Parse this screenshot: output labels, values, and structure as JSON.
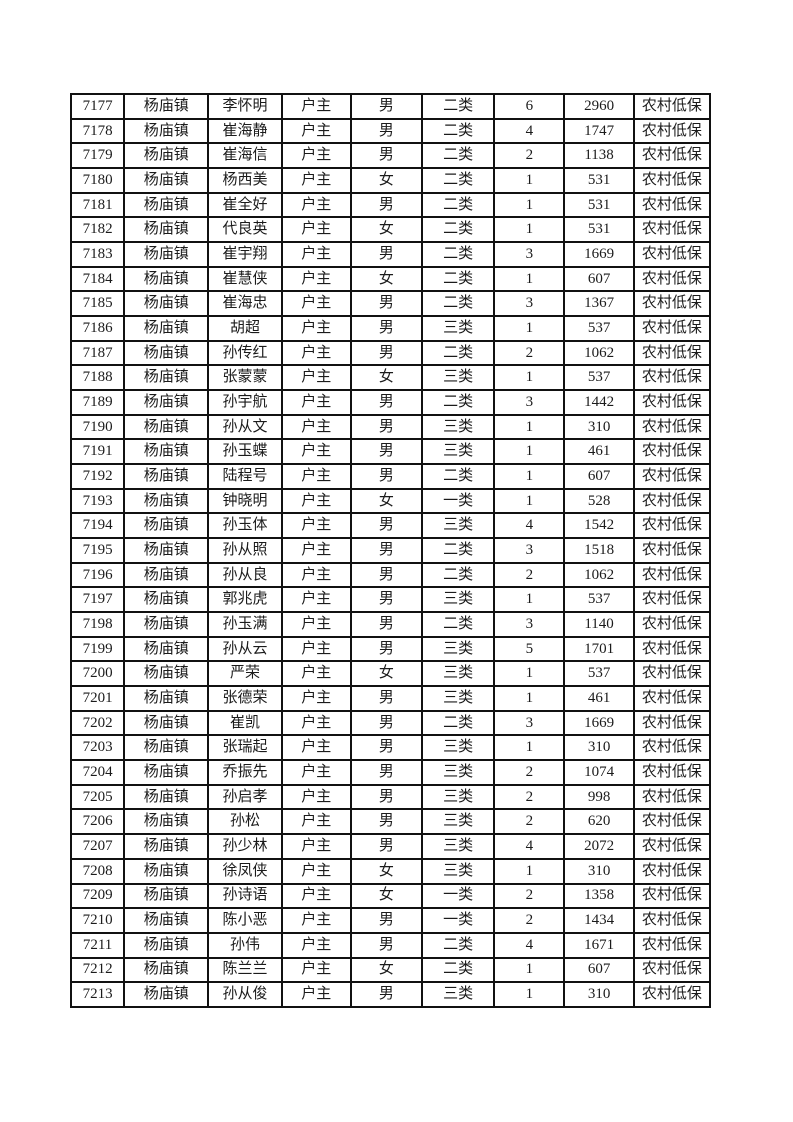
{
  "document": {
    "kind": "welfare-roster-table-page",
    "rows": [
      [
        "7177",
        "杨庙镇",
        "李怀明",
        "户主",
        "男",
        "二类",
        "6",
        "2960",
        "农村低保"
      ],
      [
        "7178",
        "杨庙镇",
        "崔海静",
        "户主",
        "男",
        "二类",
        "4",
        "1747",
        "农村低保"
      ],
      [
        "7179",
        "杨庙镇",
        "崔海信",
        "户主",
        "男",
        "二类",
        "2",
        "1138",
        "农村低保"
      ],
      [
        "7180",
        "杨庙镇",
        "杨西美",
        "户主",
        "女",
        "二类",
        "1",
        "531",
        "农村低保"
      ],
      [
        "7181",
        "杨庙镇",
        "崔全好",
        "户主",
        "男",
        "二类",
        "1",
        "531",
        "农村低保"
      ],
      [
        "7182",
        "杨庙镇",
        "代良英",
        "户主",
        "女",
        "二类",
        "1",
        "531",
        "农村低保"
      ],
      [
        "7183",
        "杨庙镇",
        "崔宇翔",
        "户主",
        "男",
        "二类",
        "3",
        "1669",
        "农村低保"
      ],
      [
        "7184",
        "杨庙镇",
        "崔慧侠",
        "户主",
        "女",
        "二类",
        "1",
        "607",
        "农村低保"
      ],
      [
        "7185",
        "杨庙镇",
        "崔海忠",
        "户主",
        "男",
        "二类",
        "3",
        "1367",
        "农村低保"
      ],
      [
        "7186",
        "杨庙镇",
        "胡超",
        "户主",
        "男",
        "三类",
        "1",
        "537",
        "农村低保"
      ],
      [
        "7187",
        "杨庙镇",
        "孙传红",
        "户主",
        "男",
        "二类",
        "2",
        "1062",
        "农村低保"
      ],
      [
        "7188",
        "杨庙镇",
        "张蒙蒙",
        "户主",
        "女",
        "三类",
        "1",
        "537",
        "农村低保"
      ],
      [
        "7189",
        "杨庙镇",
        "孙宇航",
        "户主",
        "男",
        "二类",
        "3",
        "1442",
        "农村低保"
      ],
      [
        "7190",
        "杨庙镇",
        "孙从文",
        "户主",
        "男",
        "三类",
        "1",
        "310",
        "农村低保"
      ],
      [
        "7191",
        "杨庙镇",
        "孙玉蝶",
        "户主",
        "男",
        "三类",
        "1",
        "461",
        "农村低保"
      ],
      [
        "7192",
        "杨庙镇",
        "陆程号",
        "户主",
        "男",
        "二类",
        "1",
        "607",
        "农村低保"
      ],
      [
        "7193",
        "杨庙镇",
        "钟晓明",
        "户主",
        "女",
        "一类",
        "1",
        "528",
        "农村低保"
      ],
      [
        "7194",
        "杨庙镇",
        "孙玉体",
        "户主",
        "男",
        "三类",
        "4",
        "1542",
        "农村低保"
      ],
      [
        "7195",
        "杨庙镇",
        "孙从照",
        "户主",
        "男",
        "二类",
        "3",
        "1518",
        "农村低保"
      ],
      [
        "7196",
        "杨庙镇",
        "孙从良",
        "户主",
        "男",
        "二类",
        "2",
        "1062",
        "农村低保"
      ],
      [
        "7197",
        "杨庙镇",
        "郭兆虎",
        "户主",
        "男",
        "三类",
        "1",
        "537",
        "农村低保"
      ],
      [
        "7198",
        "杨庙镇",
        "孙玉满",
        "户主",
        "男",
        "二类",
        "3",
        "1140",
        "农村低保"
      ],
      [
        "7199",
        "杨庙镇",
        "孙从云",
        "户主",
        "男",
        "三类",
        "5",
        "1701",
        "农村低保"
      ],
      [
        "7200",
        "杨庙镇",
        "严荣",
        "户主",
        "女",
        "三类",
        "1",
        "537",
        "农村低保"
      ],
      [
        "7201",
        "杨庙镇",
        "张德荣",
        "户主",
        "男",
        "三类",
        "1",
        "461",
        "农村低保"
      ],
      [
        "7202",
        "杨庙镇",
        "崔凯",
        "户主",
        "男",
        "二类",
        "3",
        "1669",
        "农村低保"
      ],
      [
        "7203",
        "杨庙镇",
        "张瑞起",
        "户主",
        "男",
        "三类",
        "1",
        "310",
        "农村低保"
      ],
      [
        "7204",
        "杨庙镇",
        "乔振先",
        "户主",
        "男",
        "三类",
        "2",
        "1074",
        "农村低保"
      ],
      [
        "7205",
        "杨庙镇",
        "孙启孝",
        "户主",
        "男",
        "三类",
        "2",
        "998",
        "农村低保"
      ],
      [
        "7206",
        "杨庙镇",
        "孙松",
        "户主",
        "男",
        "三类",
        "2",
        "620",
        "农村低保"
      ],
      [
        "7207",
        "杨庙镇",
        "孙少林",
        "户主",
        "男",
        "三类",
        "4",
        "2072",
        "农村低保"
      ],
      [
        "7208",
        "杨庙镇",
        "徐凤侠",
        "户主",
        "女",
        "三类",
        "1",
        "310",
        "农村低保"
      ],
      [
        "7209",
        "杨庙镇",
        "孙诗语",
        "户主",
        "女",
        "一类",
        "2",
        "1358",
        "农村低保"
      ],
      [
        "7210",
        "杨庙镇",
        "陈小恶",
        "户主",
        "男",
        "一类",
        "2",
        "1434",
        "农村低保"
      ],
      [
        "7211",
        "杨庙镇",
        "孙伟",
        "户主",
        "男",
        "二类",
        "4",
        "1671",
        "农村低保"
      ],
      [
        "7212",
        "杨庙镇",
        "陈兰兰",
        "户主",
        "女",
        "二类",
        "1",
        "607",
        "农村低保"
      ],
      [
        "7213",
        "杨庙镇",
        "孙从俊",
        "户主",
        "男",
        "三类",
        "1",
        "310",
        "农村低保"
      ]
    ]
  }
}
